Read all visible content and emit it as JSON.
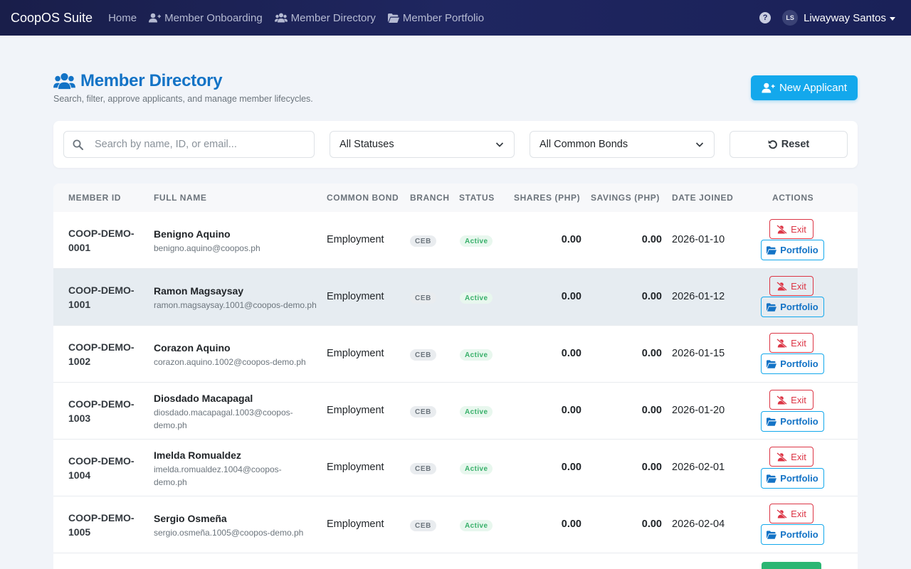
{
  "navbar": {
    "brand": "CoopOS Suite",
    "links": [
      {
        "label": "Home",
        "icon": "home"
      },
      {
        "label": "Member Onboarding",
        "icon": "user-plus-icon"
      },
      {
        "label": "Member Directory",
        "icon": "users-icon"
      },
      {
        "label": "Member Portfolio",
        "icon": "folder-open-icon"
      }
    ],
    "help_icon": "?",
    "user_initials": "LS",
    "user_name": "Liwayway Santos"
  },
  "header": {
    "title": "Member Directory",
    "subtitle": "Search, filter, approve applicants, and manage member lifecycles.",
    "new_button": "New Applicant"
  },
  "filters": {
    "search_placeholder": "Search by name, ID, or email...",
    "status_select": "All Statuses",
    "bond_select": "All Common Bonds",
    "reset_label": "Reset"
  },
  "table": {
    "headers": {
      "member_id": "MEMBER ID",
      "full_name": "FULL NAME",
      "common_bond": "COMMON BOND",
      "branch": "BRANCH",
      "status": "STATUS",
      "shares": "SHARES (PHP)",
      "savings": "SAVINGS (PHP)",
      "date_joined": "DATE JOINED",
      "actions": "ACTIONS"
    },
    "exit_label": "Exit",
    "portfolio_label": "Portfolio",
    "rows": [
      {
        "id_line1": "COOP-DEMO-",
        "id_line2": "0001",
        "name": "Benigno Aquino",
        "email": "benigno.aquino@coopos.ph",
        "bond": "Employment",
        "branch": "CEB",
        "status": "Active",
        "shares": "0.00",
        "savings": "0.00",
        "date": "2026-01-10"
      },
      {
        "id_line1": "COOP-DEMO-",
        "id_line2": "1001",
        "name": "Ramon Magsaysay",
        "email": "ramon.magsaysay.1001@coopos-demo.ph",
        "bond": "Employment",
        "branch": "CEB",
        "status": "Active",
        "shares": "0.00",
        "savings": "0.00",
        "date": "2026-01-12"
      },
      {
        "id_line1": "COOP-DEMO-",
        "id_line2": "1002",
        "name": "Corazon Aquino",
        "email": "corazon.aquino.1002@coopos-demo.ph",
        "bond": "Employment",
        "branch": "CEB",
        "status": "Active",
        "shares": "0.00",
        "savings": "0.00",
        "date": "2026-01-15"
      },
      {
        "id_line1": "COOP-DEMO-",
        "id_line2": "1003",
        "name": "Diosdado Macapagal",
        "email_line1": "diosdado.macapagal.1003@coopos-",
        "email_line2": "demo.ph",
        "bond": "Employment",
        "branch": "CEB",
        "status": "Active",
        "shares": "0.00",
        "savings": "0.00",
        "date": "2026-01-20"
      },
      {
        "id_line1": "COOP-DEMO-",
        "id_line2": "1004",
        "name": "Imelda Romualdez",
        "email_line1": "imelda.romualdez.1004@coopos-",
        "email_line2": "demo.ph",
        "bond": "Employment",
        "branch": "CEB",
        "status": "Active",
        "shares": "0.00",
        "savings": "0.00",
        "date": "2026-02-01"
      },
      {
        "id_line1": "COOP-DEMO-",
        "id_line2": "1005",
        "name": "Sergio Osmeña",
        "email": "sergio.osmeña.1005@coopos-demo.ph",
        "bond": "Employment",
        "branch": "CEB",
        "status": "Active",
        "shares": "0.00",
        "savings": "0.00",
        "date": "2026-02-04"
      }
    ]
  }
}
